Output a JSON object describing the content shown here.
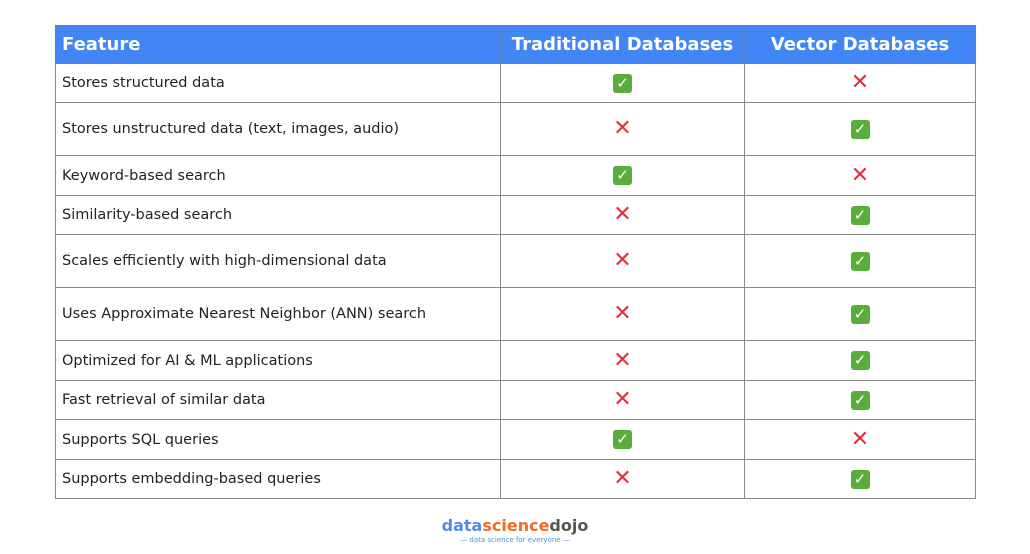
{
  "headers": [
    "Feature",
    "Traditional Databases",
    "Vector Databases"
  ],
  "rows": [
    {
      "feature": "Stores structured data",
      "traditional": "yes",
      "vector": "no"
    },
    {
      "feature": "Stores unstructured data (text, images, audio)",
      "traditional": "no",
      "vector": "yes"
    },
    {
      "feature": "Keyword-based search",
      "traditional": "yes",
      "vector": "no"
    },
    {
      "feature": "Similarity-based search",
      "traditional": "no",
      "vector": "yes"
    },
    {
      "feature": "Scales efficiently with high-dimensional data",
      "traditional": "no",
      "vector": "yes"
    },
    {
      "feature": "Uses Approximate Nearest Neighbor (ANN) search",
      "traditional": "no",
      "vector": "yes"
    },
    {
      "feature": "Optimized for AI & ML applications",
      "traditional": "no",
      "vector": "yes"
    },
    {
      "feature": "Fast retrieval of similar data",
      "traditional": "no",
      "vector": "yes"
    },
    {
      "feature": "Supports SQL queries",
      "traditional": "yes",
      "vector": "no"
    },
    {
      "feature": "Supports embedding-based queries",
      "traditional": "no",
      "vector": "yes"
    }
  ],
  "icons": {
    "yes": "check-mark-icon",
    "no": "cross-mark-icon"
  },
  "colors": {
    "header": "#4285f4",
    "check": "#5aad3c",
    "cross": "#e5303f"
  },
  "logo": {
    "part1": "data",
    "part2": "science",
    "part3": "dojo",
    "tagline": "data science for everyone"
  }
}
